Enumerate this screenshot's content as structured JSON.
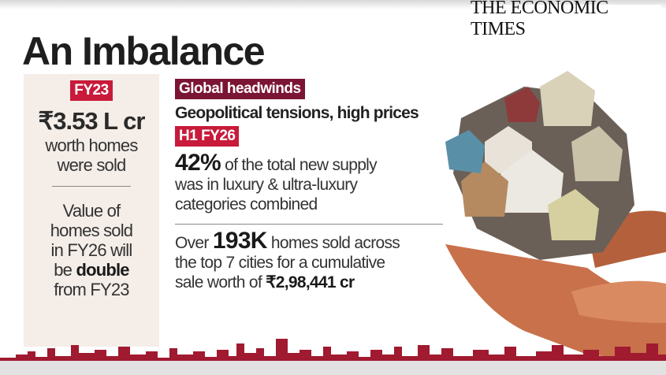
{
  "brand": "THE ECONOMIC TIMES",
  "title": "An Imbalance",
  "left": {
    "badge": "FY23",
    "value": "₹3.53 L cr",
    "value_text": [
      "worth homes",
      "were sold"
    ],
    "projection": [
      "Value of",
      "homes sold",
      "in FY26 will"
    ],
    "projection_prefix": "be ",
    "projection_bold": "double",
    "projection_end": "from FY23"
  },
  "right": {
    "badge1": "Global headwinds",
    "headwinds": "Geopolitical tensions, high prices",
    "badge2": "H1 FY26",
    "stat1_bold": "42%",
    "stat1_text": " of the total new supply",
    "stat1_lines": [
      "was in luxury & ultra-luxury",
      "categories combined"
    ],
    "stat2_pre": "Over ",
    "stat2_bold": "193K",
    "stat2_text": " homes sold across",
    "stat2_line2": "the top 7 cities for a cumulative",
    "stat2_line3_pre": "sale worth of ",
    "stat2_line3_bold": "₹2,98,441 cr"
  },
  "colors": {
    "badge_red": "#c81a3a",
    "badge_maroon": "#7b1534",
    "skyline": "#a01a30"
  }
}
